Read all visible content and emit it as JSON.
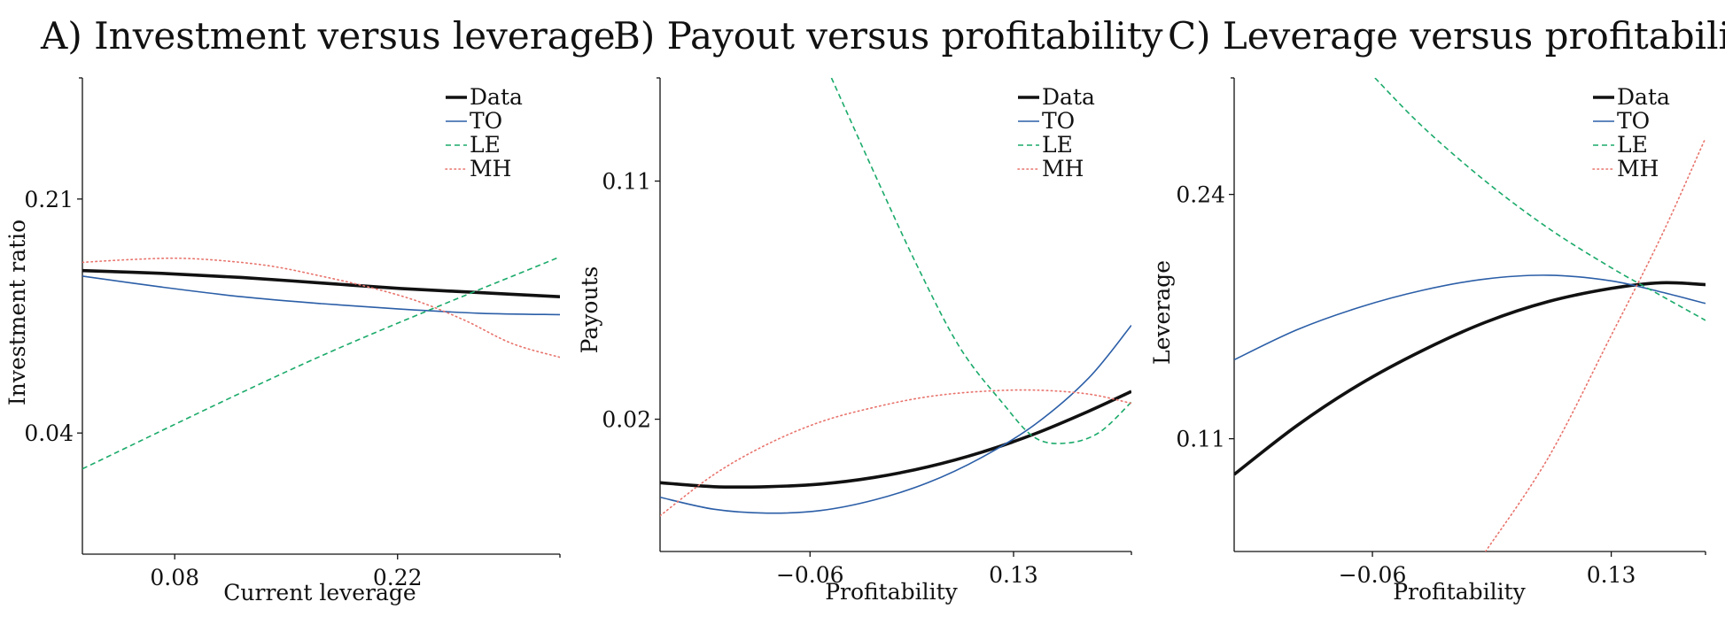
{
  "colors": {
    "Data": "#111111",
    "TO": "#2b5ea7",
    "LE": "#1aaa6a",
    "MH": "#e8736c"
  },
  "chart_data": [
    {
      "type": "line",
      "title": "A) Investment versus leverage",
      "xlabel": "Current leverage",
      "ylabel": "Investment ratio",
      "xlim": [
        0.022,
        0.322
      ],
      "ylim": [
        -0.048,
        0.298
      ],
      "xticks": [
        {
          "value": 0.08,
          "label": "0.08"
        },
        {
          "value": 0.22,
          "label": "0.22"
        }
      ],
      "yticks": [
        {
          "value": 0.21,
          "label": "0.21"
        },
        {
          "value": 0.04,
          "label": "0.04"
        }
      ],
      "legend": {
        "placement": "top-right",
        "entries": [
          "Data",
          "TO",
          "LE",
          "MH"
        ]
      },
      "series": [
        {
          "name": "Data",
          "style": "solid-thick",
          "points": [
            [
              0.022,
              0.158
            ],
            [
              0.072,
              0.156
            ],
            [
              0.122,
              0.153
            ],
            [
              0.172,
              0.149
            ],
            [
              0.222,
              0.145
            ],
            [
              0.272,
              0.142
            ],
            [
              0.322,
              0.139
            ]
          ]
        },
        {
          "name": "TO",
          "style": "solid",
          "points": [
            [
              0.022,
              0.154
            ],
            [
              0.072,
              0.146
            ],
            [
              0.122,
              0.139
            ],
            [
              0.172,
              0.134
            ],
            [
              0.222,
              0.13
            ],
            [
              0.272,
              0.127
            ],
            [
              0.322,
              0.126
            ]
          ]
        },
        {
          "name": "LE",
          "style": "dashed",
          "points": [
            [
              0.022,
              0.014
            ],
            [
              0.172,
              0.096
            ],
            [
              0.322,
              0.168
            ]
          ]
        },
        {
          "name": "MH",
          "style": "dotted",
          "points": [
            [
              0.022,
              0.164
            ],
            [
              0.052,
              0.166
            ],
            [
              0.082,
              0.167
            ],
            [
              0.112,
              0.165
            ],
            [
              0.142,
              0.161
            ],
            [
              0.172,
              0.154
            ],
            [
              0.202,
              0.146
            ],
            [
              0.232,
              0.136
            ],
            [
              0.262,
              0.122
            ],
            [
              0.292,
              0.105
            ],
            [
              0.322,
              0.095
            ]
          ]
        }
      ]
    },
    {
      "type": "line",
      "title": "B) Payout versus profitability",
      "xlabel": "Profitability",
      "ylabel": "Payouts",
      "xlim": [
        -0.2,
        0.24
      ],
      "ylim": [
        -0.03,
        0.149
      ],
      "xticks": [
        {
          "value": -0.06,
          "label": "−0.06"
        },
        {
          "value": 0.13,
          "label": "0.13"
        }
      ],
      "yticks": [
        {
          "value": 0.11,
          "label": "0.11"
        },
        {
          "value": 0.02,
          "label": "0.02"
        }
      ],
      "legend": {
        "placement": "top-right",
        "entries": [
          "Data",
          "TO",
          "LE",
          "MH"
        ]
      },
      "series": [
        {
          "name": "Data",
          "style": "solid-thick",
          "points": [
            [
              -0.2,
              -0.004
            ],
            [
              -0.15,
              -0.0055
            ],
            [
              -0.1,
              -0.0055
            ],
            [
              -0.05,
              -0.0045
            ],
            [
              0.0,
              -0.002
            ],
            [
              0.05,
              0.002
            ],
            [
              0.1,
              0.0075
            ],
            [
              0.15,
              0.0145
            ],
            [
              0.2,
              0.023
            ],
            [
              0.24,
              0.0305
            ]
          ]
        },
        {
          "name": "TO",
          "style": "solid",
          "points": [
            [
              -0.2,
              -0.0095
            ],
            [
              -0.15,
              -0.014
            ],
            [
              -0.1,
              -0.0155
            ],
            [
              -0.05,
              -0.0145
            ],
            [
              0.0,
              -0.0105
            ],
            [
              0.05,
              -0.004
            ],
            [
              0.1,
              0.0055
            ],
            [
              0.15,
              0.018
            ],
            [
              0.2,
              0.0355
            ],
            [
              0.24,
              0.0555
            ]
          ]
        },
        {
          "name": "LE",
          "style": "dashed",
          "points": [
            [
              -0.04,
              0.149
            ],
            [
              0.0,
              0.113
            ],
            [
              0.04,
              0.078
            ],
            [
              0.08,
              0.047
            ],
            [
              0.12,
              0.026
            ],
            [
              0.15,
              0.013
            ],
            [
              0.18,
              0.011
            ],
            [
              0.21,
              0.015
            ],
            [
              0.24,
              0.0265
            ]
          ]
        },
        {
          "name": "MH",
          "style": "dotted",
          "points": [
            [
              -0.2,
              -0.0165
            ],
            [
              -0.15,
              -0.001
            ],
            [
              -0.1,
              0.0105
            ],
            [
              -0.05,
              0.019
            ],
            [
              0.0,
              0.0245
            ],
            [
              0.05,
              0.0285
            ],
            [
              0.1,
              0.0305
            ],
            [
              0.15,
              0.031
            ],
            [
              0.2,
              0.0295
            ],
            [
              0.24,
              0.026
            ]
          ]
        }
      ]
    },
    {
      "type": "line",
      "title": "C) Leverage versus profitability",
      "xlabel": "Profitability",
      "ylabel": "Leverage",
      "xlim": [
        -0.17,
        0.205
      ],
      "ylim": [
        0.05,
        0.302
      ],
      "xticks": [
        {
          "value": -0.06,
          "label": "−0.06"
        },
        {
          "value": 0.13,
          "label": "0.13"
        }
      ],
      "yticks": [
        {
          "value": 0.24,
          "label": "0.24"
        },
        {
          "value": 0.11,
          "label": "0.11"
        }
      ],
      "legend": {
        "placement": "top-right",
        "entries": [
          "Data",
          "TO",
          "LE",
          "MH"
        ]
      },
      "series": [
        {
          "name": "Data",
          "style": "solid-thick",
          "points": [
            [
              -0.17,
              0.091
            ],
            [
              -0.12,
              0.117
            ],
            [
              -0.07,
              0.139
            ],
            [
              -0.02,
              0.157
            ],
            [
              0.03,
              0.172
            ],
            [
              0.08,
              0.183
            ],
            [
              0.13,
              0.19
            ],
            [
              0.17,
              0.193
            ],
            [
              0.205,
              0.192
            ]
          ]
        },
        {
          "name": "TO",
          "style": "solid",
          "points": [
            [
              -0.17,
              0.152
            ],
            [
              -0.12,
              0.168
            ],
            [
              -0.07,
              0.18
            ],
            [
              -0.02,
              0.189
            ],
            [
              0.03,
              0.195
            ],
            [
              0.08,
              0.197
            ],
            [
              0.13,
              0.194
            ],
            [
              0.17,
              0.188
            ],
            [
              0.205,
              0.182
            ]
          ]
        },
        {
          "name": "LE",
          "style": "dashed",
          "points": [
            [
              -0.058,
              0.302
            ],
            [
              -0.02,
              0.276
            ],
            [
              0.03,
              0.247
            ],
            [
              0.08,
              0.222
            ],
            [
              0.13,
              0.201
            ],
            [
              0.17,
              0.186
            ],
            [
              0.205,
              0.173
            ]
          ]
        },
        {
          "name": "MH",
          "style": "dotted",
          "points": [
            [
              0.03,
              0.05
            ],
            [
              0.08,
              0.1
            ],
            [
              0.13,
              0.165
            ],
            [
              0.17,
              0.218
            ],
            [
              0.205,
              0.27
            ]
          ]
        }
      ]
    }
  ]
}
